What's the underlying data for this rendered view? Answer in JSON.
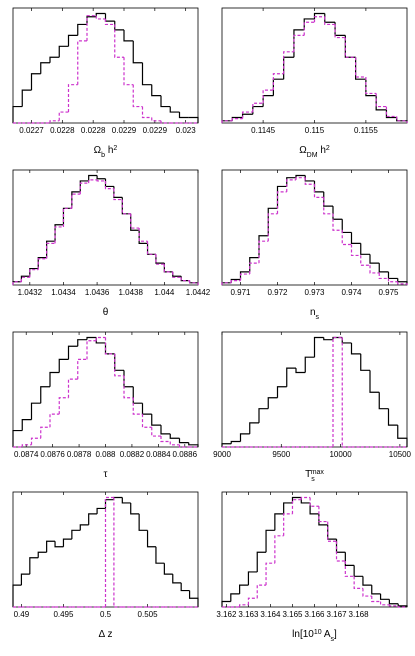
{
  "chart_data": [
    {
      "type": "histogram",
      "xlabel": [
        {
          "text": "Ω"
        },
        {
          "sub": "b"
        },
        {
          "text": " h"
        },
        {
          "sup": "2"
        }
      ],
      "xlim": [
        0.02267,
        0.02297
      ],
      "ylim": [
        0,
        1.05
      ],
      "xticks": [
        0.0227,
        {
          "value": 0.02275,
          "label": "0.0228"
        },
        0.0228,
        {
          "value": 0.02285,
          "label": "0.0229"
        },
        0.0229,
        {
          "value": 0.02295,
          "label": "0.023"
        }
      ],
      "bins": [
        0.02267,
        0.022685,
        0.0227,
        0.022715,
        0.02273,
        0.022745,
        0.02276,
        0.022775,
        0.02279,
        0.022805,
        0.02282,
        0.022835,
        0.02285,
        0.022865,
        0.02288,
        0.022895,
        0.02291,
        0.022925,
        0.02294,
        0.022955,
        0.02297
      ],
      "series": [
        {
          "color": "#000000",
          "values": [
            0.15,
            0.3,
            0.45,
            0.55,
            0.6,
            0.7,
            0.8,
            0.9,
            0.97,
            1.0,
            0.93,
            0.85,
            0.75,
            0.55,
            0.35,
            0.25,
            0.15,
            0.1,
            0.05,
            0.05
          ]
        },
        {
          "color": "#cc33cc",
          "dashed": true,
          "values": [
            0,
            0,
            0,
            0,
            0.02,
            0.1,
            0.35,
            0.75,
            0.98,
            0.95,
            0.9,
            0.6,
            0.35,
            0.15,
            0.05,
            0.02,
            0,
            0,
            0,
            0
          ]
        }
      ]
    },
    {
      "type": "histogram",
      "xlabel": [
        {
          "text": "Ω"
        },
        {
          "sub": "DM"
        },
        {
          "text": " h"
        },
        {
          "sup": "2"
        }
      ],
      "xlim": [
        0.1141,
        0.1159
      ],
      "ylim": [
        0,
        1.05
      ],
      "xticks": [
        0.1145,
        0.115,
        0.1155
      ],
      "bins": [
        0.1141,
        0.1142,
        0.1143,
        0.1144,
        0.1145,
        0.1146,
        0.1147,
        0.1148,
        0.1149,
        0.115,
        0.1151,
        0.1152,
        0.1153,
        0.1154,
        0.1155,
        0.1156,
        0.1157,
        0.1158,
        0.1159
      ],
      "series": [
        {
          "color": "#000000",
          "values": [
            0.02,
            0.05,
            0.08,
            0.15,
            0.25,
            0.4,
            0.6,
            0.85,
            0.95,
            1.0,
            0.92,
            0.8,
            0.6,
            0.4,
            0.25,
            0.12,
            0.05,
            0.02
          ]
        },
        {
          "color": "#cc33cc",
          "dashed": true,
          "values": [
            0.02,
            0.04,
            0.1,
            0.18,
            0.3,
            0.45,
            0.65,
            0.8,
            0.92,
            0.97,
            0.9,
            0.78,
            0.6,
            0.42,
            0.27,
            0.15,
            0.06,
            0.02
          ]
        }
      ]
    },
    {
      "type": "histogram",
      "xlabel": [
        {
          "text": "θ"
        }
      ],
      "xlim": [
        1.0431,
        1.0442
      ],
      "ylim": [
        0,
        1.05
      ],
      "xticks": [
        1.0432,
        1.0434,
        1.0436,
        1.0438,
        1.044,
        1.0442
      ],
      "bins": [
        1.0431,
        1.04315,
        1.0432,
        1.04325,
        1.0433,
        1.04335,
        1.0434,
        1.04345,
        1.0435,
        1.04355,
        1.0436,
        1.04365,
        1.0437,
        1.04375,
        1.0438,
        1.04385,
        1.0439,
        1.04395,
        1.044,
        1.04405,
        1.0441,
        1.04415,
        1.0442
      ],
      "series": [
        {
          "color": "#000000",
          "values": [
            0.03,
            0.08,
            0.15,
            0.25,
            0.4,
            0.55,
            0.7,
            0.85,
            0.95,
            1.0,
            0.97,
            0.9,
            0.8,
            0.65,
            0.5,
            0.38,
            0.28,
            0.2,
            0.12,
            0.08,
            0.04,
            0.02
          ]
        },
        {
          "color": "#cc33cc",
          "dashed": true,
          "values": [
            0.03,
            0.07,
            0.14,
            0.24,
            0.38,
            0.53,
            0.7,
            0.83,
            0.93,
            0.96,
            0.95,
            0.88,
            0.78,
            0.65,
            0.52,
            0.4,
            0.28,
            0.19,
            0.12,
            0.07,
            0.04,
            0.02
          ]
        }
      ]
    },
    {
      "type": "histogram",
      "xlabel": [
        {
          "text": "n"
        },
        {
          "sub": "s"
        }
      ],
      "xlim": [
        0.9705,
        0.9755
      ],
      "ylim": [
        0,
        1.05
      ],
      "xticks": [
        0.971,
        0.972,
        0.973,
        0.974,
        0.975
      ],
      "bins": [
        0.9705,
        0.97075,
        0.971,
        0.97125,
        0.9715,
        0.97175,
        0.972,
        0.97225,
        0.9725,
        0.97275,
        0.973,
        0.97325,
        0.9735,
        0.97375,
        0.974,
        0.97425,
        0.9745,
        0.97475,
        0.975,
        0.97525,
        0.9755
      ],
      "series": [
        {
          "color": "#000000",
          "values": [
            0.02,
            0.05,
            0.12,
            0.25,
            0.45,
            0.7,
            0.9,
            0.98,
            1.0,
            0.95,
            0.85,
            0.72,
            0.6,
            0.48,
            0.38,
            0.28,
            0.2,
            0.12,
            0.06,
            0.03
          ]
        },
        {
          "color": "#cc33cc",
          "dashed": true,
          "values": [
            0.02,
            0.04,
            0.1,
            0.2,
            0.4,
            0.65,
            0.85,
            0.96,
            0.98,
            0.92,
            0.8,
            0.65,
            0.5,
            0.37,
            0.27,
            0.18,
            0.11,
            0.06,
            0.03,
            0.01
          ]
        }
      ]
    },
    {
      "type": "histogram",
      "xlabel": [
        {
          "text": "τ"
        }
      ],
      "xlim": [
        0.0873,
        0.0887
      ],
      "ylim": [
        0,
        1.05
      ],
      "xticks": [
        0.0874,
        0.0876,
        0.0878,
        0.088,
        0.0882,
        0.0884,
        0.0886
      ],
      "bins": [
        0.0873,
        0.08737,
        0.08744,
        0.08751,
        0.08758,
        0.08765,
        0.08772,
        0.08779,
        0.08786,
        0.08793,
        0.088,
        0.08807,
        0.08814,
        0.08821,
        0.08828,
        0.08835,
        0.08842,
        0.08849,
        0.08856,
        0.08863,
        0.0887
      ],
      "series": [
        {
          "color": "#000000",
          "values": [
            0.15,
            0.25,
            0.4,
            0.55,
            0.68,
            0.8,
            0.92,
            0.98,
            1.0,
            0.95,
            0.85,
            0.7,
            0.55,
            0.4,
            0.3,
            0.2,
            0.12,
            0.08,
            0.04,
            0.02
          ]
        },
        {
          "color": "#cc33cc",
          "dashed": true,
          "values": [
            0,
            0.02,
            0.08,
            0.18,
            0.3,
            0.45,
            0.62,
            0.8,
            0.97,
            1.0,
            0.85,
            0.65,
            0.45,
            0.3,
            0.18,
            0.1,
            0.05,
            0.02,
            0,
            0
          ]
        }
      ]
    },
    {
      "type": "histogram",
      "xlabel": [
        {
          "text": "T"
        },
        {
          "sub": "s"
        },
        {
          "sup": "max"
        }
      ],
      "xlim": [
        9000,
        10560
      ],
      "ylim": [
        0,
        1.05
      ],
      "xticks": [
        9000,
        9500,
        10000,
        10500
      ],
      "bins": [
        9000,
        9078,
        9156,
        9234,
        9312,
        9390,
        9468,
        9546,
        9624,
        9702,
        9780,
        9858,
        9936,
        10014,
        10092,
        10170,
        10248,
        10326,
        10404,
        10482,
        10560
      ],
      "series": [
        {
          "color": "#000000",
          "values": [
            0.03,
            0.05,
            0.12,
            0.22,
            0.35,
            0.45,
            0.55,
            0.72,
            0.68,
            0.82,
            1.0,
            0.98,
            1.0,
            0.95,
            0.85,
            0.7,
            0.5,
            0.35,
            0.2,
            0.08
          ]
        },
        {
          "color": "#cc33cc",
          "dashed": true,
          "values": [
            0,
            0,
            0,
            0,
            0,
            0,
            0,
            0,
            0,
            0,
            0,
            0,
            1.0,
            0,
            0,
            0,
            0,
            0,
            0,
            0
          ]
        }
      ]
    },
    {
      "type": "histogram",
      "xlabel": [
        {
          "text": "Δ z"
        }
      ],
      "xlim": [
        0.489,
        0.511
      ],
      "ylim": [
        0,
        1.05
      ],
      "xticks": [
        0.49,
        0.495,
        0.5,
        0.505
      ],
      "bins": [
        0.489,
        0.49,
        0.491,
        0.492,
        0.493,
        0.494,
        0.495,
        0.496,
        0.497,
        0.498,
        0.499,
        0.5,
        0.501,
        0.502,
        0.503,
        0.504,
        0.505,
        0.506,
        0.507,
        0.508,
        0.509,
        0.51,
        0.511
      ],
      "series": [
        {
          "color": "#000000",
          "values": [
            0.2,
            0.3,
            0.45,
            0.5,
            0.6,
            0.55,
            0.62,
            0.7,
            0.75,
            0.85,
            0.9,
            0.98,
            1.0,
            0.95,
            0.85,
            0.7,
            0.55,
            0.4,
            0.3,
            0.22,
            0.15,
            0.08
          ]
        },
        {
          "color": "#cc33cc",
          "dashed": true,
          "values": [
            0,
            0,
            0,
            0,
            0,
            0,
            0,
            0,
            0,
            0,
            0,
            1.0,
            0,
            0,
            0,
            0,
            0,
            0,
            0,
            0,
            0,
            0
          ]
        }
      ]
    },
    {
      "type": "histogram",
      "xlabel": [
        {
          "text": "ln[10"
        },
        {
          "sup": "10"
        },
        {
          "text": " A"
        },
        {
          "sub": "s"
        },
        {
          "text": "]"
        }
      ],
      "xlim": [
        3.1618,
        3.1702
      ],
      "ylim": [
        0,
        1.05
      ],
      "xticks": [
        3.162,
        3.163,
        3.164,
        3.165,
        3.166,
        3.167,
        3.168
      ],
      "bins": [
        3.1618,
        3.1622,
        3.1626,
        3.163,
        3.1634,
        3.1638,
        3.1642,
        3.1646,
        3.165,
        3.1654,
        3.1658,
        3.1662,
        3.1666,
        3.167,
        3.1674,
        3.1678,
        3.1682,
        3.1686,
        3.169,
        3.1694,
        3.1698,
        3.1702
      ],
      "series": [
        {
          "color": "#000000",
          "values": [
            0.05,
            0.12,
            0.2,
            0.32,
            0.5,
            0.7,
            0.85,
            0.95,
            1.0,
            0.95,
            0.85,
            0.75,
            0.62,
            0.5,
            0.38,
            0.28,
            0.2,
            0.12,
            0.07,
            0.03,
            0.01
          ]
        },
        {
          "color": "#cc33cc",
          "dashed": true,
          "values": [
            0,
            0,
            0.02,
            0.08,
            0.2,
            0.4,
            0.65,
            0.85,
            0.98,
            1.0,
            0.92,
            0.78,
            0.6,
            0.42,
            0.28,
            0.17,
            0.1,
            0.05,
            0.02,
            0.01,
            0
          ]
        }
      ]
    }
  ]
}
